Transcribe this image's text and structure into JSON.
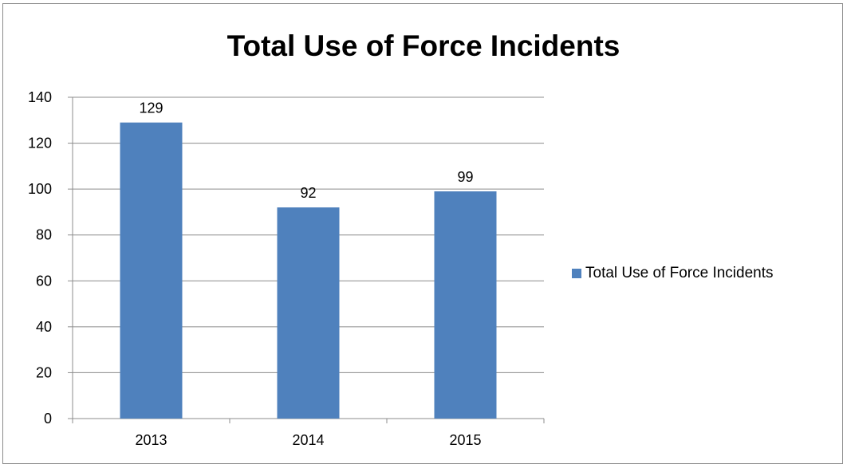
{
  "chart_data": {
    "type": "bar",
    "title": "Total Use of Force Incidents",
    "categories": [
      "2013",
      "2014",
      "2015"
    ],
    "series": [
      {
        "name": "Total Use of Force Incidents",
        "values": [
          129,
          92,
          99
        ],
        "color": "#4f81bd"
      }
    ],
    "data_labels": [
      "129",
      "92",
      "99"
    ],
    "ylim": [
      0,
      140
    ],
    "yticks": [
      0,
      20,
      40,
      60,
      80,
      100,
      120,
      140
    ],
    "grid": true,
    "legend_position": "right"
  }
}
